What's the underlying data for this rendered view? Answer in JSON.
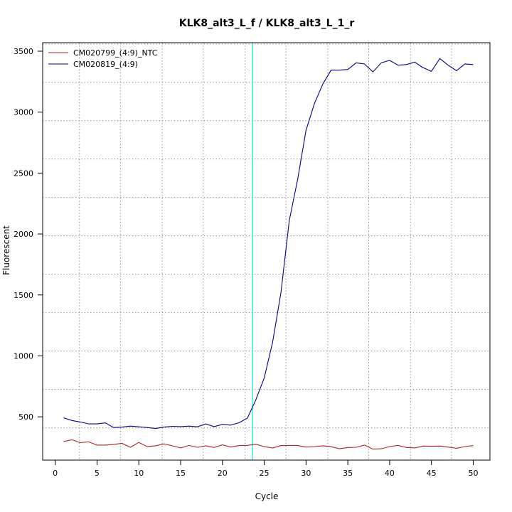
{
  "chart_data": {
    "type": "line",
    "title": "KLK8_alt3_L_f / KLK8_alt3_L_1_r",
    "xlabel": "Cycle",
    "ylabel": "Fluorescent",
    "xlim": [
      -1.5,
      52
    ],
    "ylim": [
      145,
      3570
    ],
    "x_ticks": [
      0,
      5,
      10,
      15,
      20,
      25,
      30,
      35,
      40,
      45,
      50
    ],
    "y_ticks": [
      500,
      1000,
      1500,
      2000,
      2500,
      3000,
      3500
    ],
    "grid": true,
    "x_grid_lines": [
      2.9,
      7.8,
      12.8,
      17.7,
      22.7,
      27.6,
      32.6,
      37.5,
      42.5,
      47.4
    ],
    "y_grid_lines": [
      410,
      725,
      1040,
      1355,
      1670,
      1985,
      2300,
      2615,
      2930,
      3245,
      3560
    ],
    "threshold_x": 23.6,
    "threshold_color": "#00e5ee",
    "legend_position": "top-left",
    "x": [
      1,
      2,
      3,
      4,
      5,
      6,
      7,
      8,
      9,
      10,
      11,
      12,
      13,
      14,
      15,
      16,
      17,
      18,
      19,
      20,
      21,
      22,
      23,
      24,
      25,
      26,
      27,
      28,
      29,
      30,
      31,
      32,
      33,
      34,
      35,
      36,
      37,
      38,
      39,
      40,
      41,
      42,
      43,
      44,
      45,
      46,
      47,
      48,
      49,
      50
    ],
    "series": [
      {
        "name": "CM020799_(4:9)_NTC",
        "color": "#b22222",
        "values": [
          298,
          312,
          288,
          295,
          268,
          268,
          274,
          282,
          250,
          290,
          255,
          262,
          278,
          262,
          245,
          265,
          250,
          262,
          248,
          270,
          252,
          264,
          266,
          275,
          255,
          244,
          264,
          265,
          265,
          252,
          256,
          262,
          255,
          238,
          248,
          250,
          268,
          235,
          238,
          256,
          266,
          248,
          245,
          260,
          258,
          260,
          252,
          242,
          256,
          264
        ]
      },
      {
        "name": "CM020819_(4:9)",
        "color": "#00008b",
        "values": [
          492,
          470,
          458,
          442,
          442,
          450,
          412,
          416,
          424,
          418,
          412,
          404,
          416,
          422,
          420,
          424,
          418,
          442,
          420,
          438,
          432,
          452,
          490,
          640,
          820,
          1110,
          1520,
          2110,
          2450,
          2850,
          3070,
          3230,
          3345,
          3345,
          3350,
          3405,
          3395,
          3330,
          3405,
          3425,
          3385,
          3390,
          3410,
          3365,
          3335,
          3440,
          3385,
          3340,
          3395,
          3390
        ]
      }
    ]
  }
}
